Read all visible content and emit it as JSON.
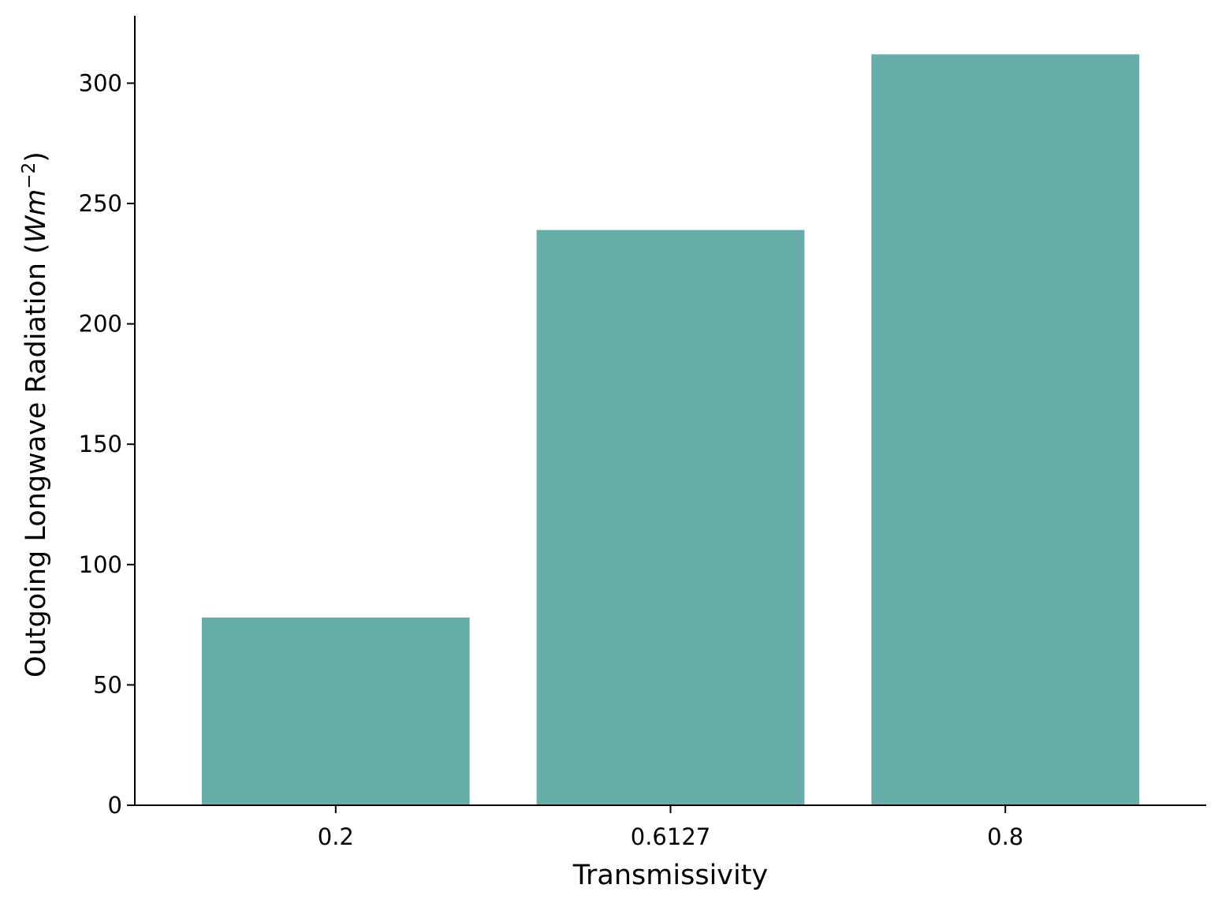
{
  "chart_data": {
    "type": "bar",
    "title": "",
    "categories": [
      "0.2",
      "0.6127",
      "0.8"
    ],
    "values": [
      78,
      239,
      312
    ],
    "xlabel": "Transmissivity",
    "ylabel": "Outgoing Longwave Radiation (Wm⁻²)",
    "ylabel_text": "Outgoing Longwave Radiation (",
    "ylabel_unit_main": "Wm",
    "ylabel_unit_sup": "−2",
    "ylabel_close": ")",
    "ylim": [
      0,
      328
    ],
    "yticks": [
      0,
      50,
      100,
      150,
      200,
      250,
      300
    ],
    "ytick_labels": [
      "0",
      "50",
      "100",
      "150",
      "200",
      "250",
      "300"
    ],
    "bar_color": "#67ADAA",
    "grid": false,
    "legend": "none"
  }
}
